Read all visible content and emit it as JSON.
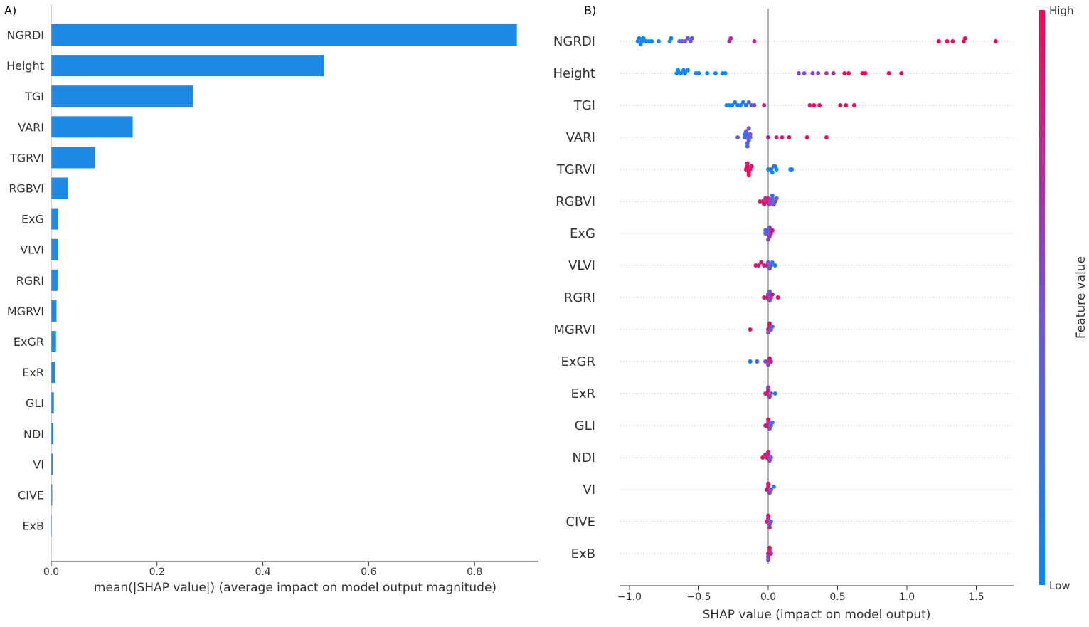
{
  "chart_data": [
    {
      "type": "bar",
      "orientation": "horizontal",
      "panel_label": "A)",
      "title": "",
      "xlabel": "mean(|SHAP value|) (average impact on model output magnitude)",
      "ylabel": "",
      "xlim": [
        0,
        0.92
      ],
      "xticks": [
        0.0,
        0.2,
        0.4,
        0.6,
        0.8
      ],
      "xtick_labels": [
        "0.0",
        "0.2",
        "0.4",
        "0.6",
        "0.8"
      ],
      "bar_color": "#1e88e5",
      "categories": [
        "NGRDI",
        "Height",
        "TGI",
        "VARI",
        "TGRVI",
        "RGBVI",
        "ExG",
        "VLVI",
        "RGRI",
        "MGRVI",
        "ExGR",
        "ExR",
        "GLI",
        "NDI",
        "VI",
        "CIVE",
        "ExB"
      ],
      "values": [
        0.88,
        0.515,
        0.268,
        0.154,
        0.083,
        0.032,
        0.013,
        0.013,
        0.012,
        0.01,
        0.009,
        0.008,
        0.005,
        0.004,
        0.003,
        0.002,
        0.001
      ]
    },
    {
      "type": "scatter",
      "subtype": "beeswarm",
      "panel_label": "B)",
      "title": "",
      "xlabel": "SHAP value (impact on model output)",
      "ylabel": "",
      "xlim": [
        -1.05,
        1.77
      ],
      "xticks": [
        -1.0,
        -0.5,
        0.0,
        0.5,
        1.0,
        1.5
      ],
      "xtick_labels": [
        "−1.0",
        "−0.5",
        "0.0",
        "0.5",
        "1.0",
        "1.5"
      ],
      "colorbar": {
        "label": "Feature value",
        "high_label": "High",
        "low_label": "Low",
        "low_color": "#008bfb",
        "high_color": "#ff0052"
      },
      "features": [
        {
          "name": "NGRDI",
          "points": [
            [
              -0.91,
              0.1
            ],
            [
              -0.93,
              0.0
            ],
            [
              -0.88,
              0.0
            ],
            [
              -0.92,
              0.1
            ],
            [
              -0.9,
              0.0
            ],
            [
              -0.94,
              0.1
            ],
            [
              -0.86,
              0.1
            ],
            [
              -0.84,
              0.0
            ],
            [
              -0.79,
              0.1
            ],
            [
              -0.71,
              0.1
            ],
            [
              -0.7,
              0.0
            ],
            [
              -0.64,
              0.3
            ],
            [
              -0.62,
              0.4
            ],
            [
              -0.6,
              0.5
            ],
            [
              -0.58,
              0.4
            ],
            [
              -0.56,
              0.5
            ],
            [
              -0.55,
              0.4
            ],
            [
              -0.28,
              0.7
            ],
            [
              -0.27,
              0.7
            ],
            [
              -0.1,
              0.75
            ],
            [
              1.23,
              1.0
            ],
            [
              1.29,
              1.0
            ],
            [
              1.33,
              0.95
            ],
            [
              1.41,
              1.0
            ],
            [
              1.42,
              0.95
            ],
            [
              1.64,
              1.0
            ]
          ]
        },
        {
          "name": "Height",
          "points": [
            [
              -0.66,
              0.05
            ],
            [
              -0.65,
              0.0
            ],
            [
              -0.63,
              0.05
            ],
            [
              -0.61,
              0.1
            ],
            [
              -0.6,
              0.05
            ],
            [
              -0.58,
              0.0
            ],
            [
              -0.52,
              0.05
            ],
            [
              -0.5,
              0.1
            ],
            [
              -0.44,
              0.0
            ],
            [
              -0.38,
              0.05
            ],
            [
              -0.33,
              0.05
            ],
            [
              -0.31,
              0.0
            ],
            [
              0.22,
              0.55
            ],
            [
              0.26,
              0.5
            ],
            [
              0.32,
              0.6
            ],
            [
              0.36,
              0.55
            ],
            [
              0.42,
              0.65
            ],
            [
              0.47,
              0.7
            ],
            [
              0.55,
              0.9
            ],
            [
              0.58,
              0.95
            ],
            [
              0.68,
              0.95
            ],
            [
              0.7,
              1.0
            ],
            [
              0.87,
              1.0
            ],
            [
              0.96,
              1.0
            ]
          ]
        },
        {
          "name": "TGI",
          "points": [
            [
              -0.3,
              0.05
            ],
            [
              -0.28,
              0.0
            ],
            [
              -0.26,
              0.1
            ],
            [
              -0.24,
              0.05
            ],
            [
              -0.22,
              0.1
            ],
            [
              -0.2,
              0.05
            ],
            [
              -0.18,
              0.0
            ],
            [
              -0.16,
              0.2
            ],
            [
              -0.14,
              0.3
            ],
            [
              -0.12,
              0.4
            ],
            [
              -0.1,
              0.5
            ],
            [
              -0.03,
              0.8
            ],
            [
              0.3,
              0.9
            ],
            [
              0.33,
              0.95
            ],
            [
              0.37,
              0.9
            ],
            [
              0.52,
              1.0
            ],
            [
              0.56,
              0.95
            ],
            [
              0.62,
              1.0
            ]
          ]
        },
        {
          "name": "VARI",
          "points": [
            [
              -0.22,
              0.4
            ],
            [
              -0.17,
              0.3
            ],
            [
              -0.16,
              0.35
            ],
            [
              -0.15,
              0.3
            ],
            [
              -0.14,
              0.35
            ],
            [
              -0.13,
              0.3
            ],
            [
              -0.16,
              0.45
            ],
            [
              -0.15,
              0.4
            ],
            [
              -0.14,
              0.5
            ],
            [
              -0.13,
              0.45
            ],
            [
              -0.17,
              0.2
            ],
            [
              -0.15,
              0.25
            ],
            [
              0.0,
              0.8
            ],
            [
              0.06,
              0.85
            ],
            [
              0.1,
              0.9
            ],
            [
              0.15,
              0.95
            ],
            [
              0.28,
              1.0
            ],
            [
              0.42,
              0.95
            ]
          ]
        },
        {
          "name": "TGRVI",
          "points": [
            [
              -0.16,
              0.9
            ],
            [
              -0.15,
              0.95
            ],
            [
              -0.14,
              1.0
            ],
            [
              -0.13,
              0.9
            ],
            [
              -0.12,
              0.95
            ],
            [
              -0.15,
              0.9
            ],
            [
              -0.14,
              0.95
            ],
            [
              0.0,
              0.1
            ],
            [
              0.02,
              0.15
            ],
            [
              0.04,
              0.1
            ],
            [
              0.06,
              0.05
            ],
            [
              0.03,
              0.0
            ],
            [
              0.05,
              0.1
            ],
            [
              0.16,
              0.0
            ],
            [
              0.17,
              0.05
            ]
          ]
        },
        {
          "name": "RGBVI",
          "points": [
            [
              -0.06,
              0.9
            ],
            [
              -0.04,
              0.85
            ],
            [
              -0.02,
              0.8
            ],
            [
              -0.01,
              0.9
            ],
            [
              0.0,
              0.7
            ],
            [
              0.01,
              0.6
            ],
            [
              0.02,
              0.5
            ],
            [
              0.03,
              0.45
            ],
            [
              0.04,
              0.4
            ],
            [
              0.05,
              0.3
            ],
            [
              0.03,
              0.2
            ],
            [
              0.06,
              0.35
            ],
            [
              -0.03,
              0.95
            ]
          ]
        },
        {
          "name": "ExG",
          "points": [
            [
              -0.02,
              0.4
            ],
            [
              -0.01,
              0.45
            ],
            [
              0.0,
              0.5
            ],
            [
              0.01,
              0.6
            ],
            [
              0.02,
              0.8
            ],
            [
              0.03,
              0.9
            ],
            [
              -0.02,
              0.3
            ],
            [
              0.01,
              0.5
            ],
            [
              0.0,
              0.55
            ]
          ]
        },
        {
          "name": "VLVI",
          "points": [
            [
              -0.09,
              0.9
            ],
            [
              -0.07,
              0.85
            ],
            [
              -0.05,
              0.9
            ],
            [
              -0.03,
              0.8
            ],
            [
              -0.01,
              0.7
            ],
            [
              0.0,
              0.5
            ],
            [
              0.01,
              0.4
            ],
            [
              0.02,
              0.3
            ],
            [
              0.03,
              0.2
            ],
            [
              0.05,
              0.1
            ]
          ]
        },
        {
          "name": "RGRI",
          "points": [
            [
              -0.03,
              0.9
            ],
            [
              -0.01,
              0.8
            ],
            [
              0.0,
              0.6
            ],
            [
              0.01,
              0.5
            ],
            [
              0.02,
              0.7
            ],
            [
              0.03,
              0.85
            ],
            [
              0.07,
              0.95
            ],
            [
              0.01,
              0.4
            ]
          ]
        },
        {
          "name": "MGRVI",
          "points": [
            [
              -0.13,
              0.95
            ],
            [
              0.0,
              0.7
            ],
            [
              0.01,
              0.8
            ],
            [
              0.02,
              0.4
            ],
            [
              0.03,
              0.2
            ],
            [
              0.0,
              0.5
            ],
            [
              0.01,
              0.9
            ]
          ]
        },
        {
          "name": "ExGR",
          "points": [
            [
              -0.13,
              0.05
            ],
            [
              -0.08,
              0.3
            ],
            [
              -0.02,
              0.5
            ],
            [
              0.0,
              0.8
            ],
            [
              0.01,
              0.9
            ],
            [
              0.02,
              0.7
            ],
            [
              0.0,
              0.6
            ]
          ]
        },
        {
          "name": "ExR",
          "points": [
            [
              -0.02,
              0.9
            ],
            [
              -0.01,
              0.8
            ],
            [
              0.0,
              0.85
            ],
            [
              0.01,
              0.7
            ],
            [
              0.02,
              0.4
            ],
            [
              0.05,
              0.1
            ],
            [
              0.0,
              0.6
            ]
          ]
        },
        {
          "name": "GLI",
          "points": [
            [
              -0.02,
              0.8
            ],
            [
              -0.01,
              0.9
            ],
            [
              0.0,
              0.6
            ],
            [
              0.01,
              0.5
            ],
            [
              0.02,
              0.3
            ],
            [
              0.03,
              0.2
            ],
            [
              0.0,
              0.95
            ]
          ]
        },
        {
          "name": "NDI",
          "points": [
            [
              -0.04,
              0.95
            ],
            [
              -0.02,
              0.9
            ],
            [
              -0.01,
              0.8
            ],
            [
              0.0,
              0.7
            ],
            [
              0.01,
              0.6
            ],
            [
              0.02,
              0.3
            ],
            [
              0.0,
              0.85
            ]
          ]
        },
        {
          "name": "VI",
          "points": [
            [
              -0.01,
              0.9
            ],
            [
              0.0,
              0.7
            ],
            [
              0.01,
              0.6
            ],
            [
              0.02,
              0.4
            ],
            [
              0.04,
              0.1
            ],
            [
              0.0,
              0.95
            ]
          ]
        },
        {
          "name": "CIVE",
          "points": [
            [
              -0.01,
              0.9
            ],
            [
              0.0,
              0.6
            ],
            [
              0.01,
              0.5
            ],
            [
              0.02,
              0.3
            ],
            [
              0.0,
              0.95
            ],
            [
              0.01,
              0.8
            ]
          ]
        },
        {
          "name": "ExB",
          "points": [
            [
              0.0,
              0.9
            ],
            [
              0.01,
              0.8
            ],
            [
              0.0,
              0.6
            ],
            [
              0.01,
              0.95
            ],
            [
              0.02,
              0.7
            ],
            [
              0.0,
              0.5
            ]
          ]
        }
      ]
    }
  ]
}
